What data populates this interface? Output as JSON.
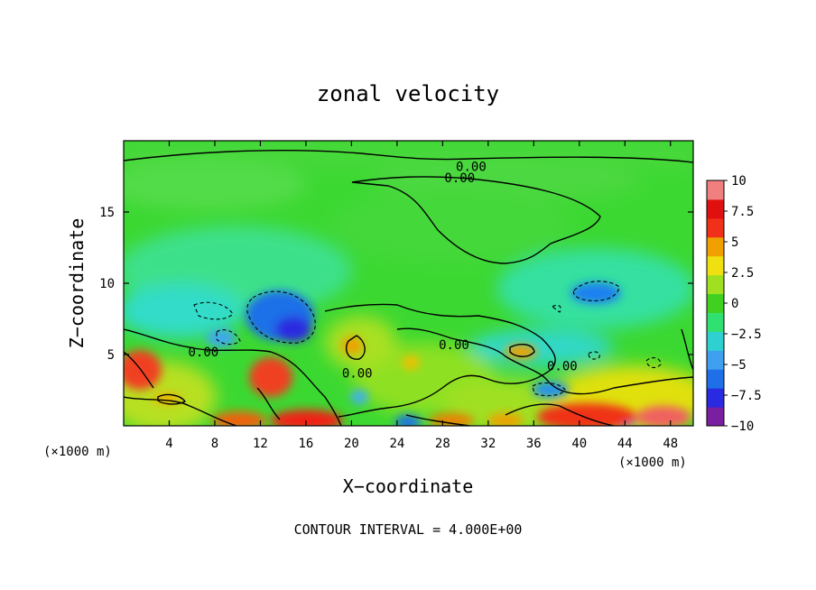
{
  "chart_data": {
    "type": "heatmap",
    "title": "zonal velocity",
    "xlabel": "X−coordinate",
    "ylabel": "Z−coordinate",
    "x_unit_left": "(×1000 m)",
    "x_unit_right": "(×1000 m)",
    "xlim": [
      0,
      50
    ],
    "ylim": [
      0,
      20
    ],
    "x_ticks": [
      {
        "value": 4,
        "label": "4"
      },
      {
        "value": 8,
        "label": "8"
      },
      {
        "value": 12,
        "label": "12"
      },
      {
        "value": 16,
        "label": "16"
      },
      {
        "value": 20,
        "label": "20"
      },
      {
        "value": 24,
        "label": "24"
      },
      {
        "value": 28,
        "label": "28"
      },
      {
        "value": 32,
        "label": "32"
      },
      {
        "value": 36,
        "label": "36"
      },
      {
        "value": 40,
        "label": "40"
      },
      {
        "value": 44,
        "label": "44"
      },
      {
        "value": 48,
        "label": "48"
      }
    ],
    "y_ticks": [
      {
        "value": 5,
        "label": "5"
      },
      {
        "value": 10,
        "label": "10"
      },
      {
        "value": 15,
        "label": "15"
      }
    ],
    "colorbar": {
      "range": [
        -10,
        10
      ],
      "labels": [
        {
          "value": 10,
          "label": "10"
        },
        {
          "value": 7.5,
          "label": "7.5"
        },
        {
          "value": 5,
          "label": "5"
        },
        {
          "value": 2.5,
          "label": "2.5"
        },
        {
          "value": 0,
          "label": "0"
        },
        {
          "value": -2.5,
          "label": "−2.5"
        },
        {
          "value": -5,
          "label": "−5"
        },
        {
          "value": -7.5,
          "label": "−7.5"
        },
        {
          "value": -10,
          "label": "−10"
        }
      ],
      "colors": [
        "#7b1fa2",
        "#2a2ae0",
        "#1f6fe8",
        "#3fa0f0",
        "#2fd0d0",
        "#30e070",
        "#3fd020",
        "#a0e020",
        "#f0e010",
        "#f0a000",
        "#f03018",
        "#e01010",
        "#f08080"
      ]
    },
    "contour_labels": [
      {
        "text": "0.00",
        "x": 30.5,
        "y": 18.2
      },
      {
        "text": "0.00",
        "x": 29.5,
        "y": 17.4
      },
      {
        "text": "0.00",
        "x": 7.0,
        "y": 5.2
      },
      {
        "text": "0.00",
        "x": 20.5,
        "y": 3.7
      },
      {
        "text": "0.00",
        "x": 29.0,
        "y": 5.7
      },
      {
        "text": "0.00",
        "x": 38.5,
        "y": 4.2
      }
    ],
    "features": [
      {
        "kind": "positive",
        "x": 1.5,
        "y": 4.0,
        "value": 7
      },
      {
        "kind": "positive",
        "x": 13.0,
        "y": 3.5,
        "value": 7
      },
      {
        "kind": "positive",
        "x": 16.0,
        "y": 0.5,
        "value": 9
      },
      {
        "kind": "positive",
        "x": 40.5,
        "y": 0.8,
        "value": 9
      },
      {
        "kind": "positive",
        "x": 46.5,
        "y": 0.8,
        "value": 10
      },
      {
        "kind": "positive",
        "x": 30.5,
        "y": 0.6,
        "value": 6
      },
      {
        "kind": "negative",
        "x": 14.0,
        "y": 7.5,
        "value": -6
      },
      {
        "kind": "negative",
        "x": 42.0,
        "y": 9.3,
        "value": -5
      },
      {
        "kind": "negative",
        "x": 37.5,
        "y": 2.5,
        "value": -4
      },
      {
        "kind": "negative",
        "x": 25.0,
        "y": 0.4,
        "value": -5
      },
      {
        "kind": "negative",
        "x": 9.0,
        "y": 6.0,
        "value": -4
      }
    ],
    "grid": false,
    "legend": "colorbar-right"
  },
  "footer": "CONTOUR INTERVAL = 4.000E+00"
}
